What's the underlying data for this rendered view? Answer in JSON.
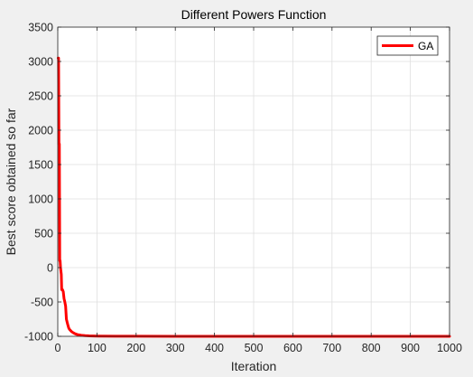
{
  "chart_data": {
    "type": "line",
    "title": "Different Powers Function",
    "xlabel": "Iteration",
    "ylabel": "Best score obtained so far",
    "xlim": [
      0,
      1000
    ],
    "ylim": [
      -1000,
      3500
    ],
    "xticks": [
      0,
      100,
      200,
      300,
      400,
      500,
      600,
      700,
      800,
      900,
      1000
    ],
    "yticks": [
      -1000,
      -500,
      0,
      500,
      1000,
      1500,
      2000,
      2500,
      3000,
      3500
    ],
    "grid": true,
    "legend_position": "top-right",
    "series": [
      {
        "name": "GA",
        "color": "#ff0000",
        "x": [
          1,
          2,
          3,
          4,
          5,
          6,
          7,
          8,
          9,
          10,
          12,
          14,
          16,
          18,
          20,
          22,
          25,
          28,
          30,
          35,
          40,
          45,
          50,
          60,
          70,
          80,
          100,
          150,
          200,
          300,
          400,
          500,
          600,
          700,
          800,
          900,
          1000
        ],
        "y": [
          3050,
          3050,
          1800,
          1800,
          100,
          100,
          0,
          -50,
          -100,
          -320,
          -320,
          -350,
          -450,
          -500,
          -560,
          -750,
          -820,
          -880,
          -900,
          -930,
          -950,
          -965,
          -975,
          -985,
          -990,
          -993,
          -996,
          -998,
          -999,
          -1000,
          -1000,
          -1000,
          -1000,
          -1000,
          -1000,
          -1000,
          -1000
        ]
      }
    ]
  }
}
